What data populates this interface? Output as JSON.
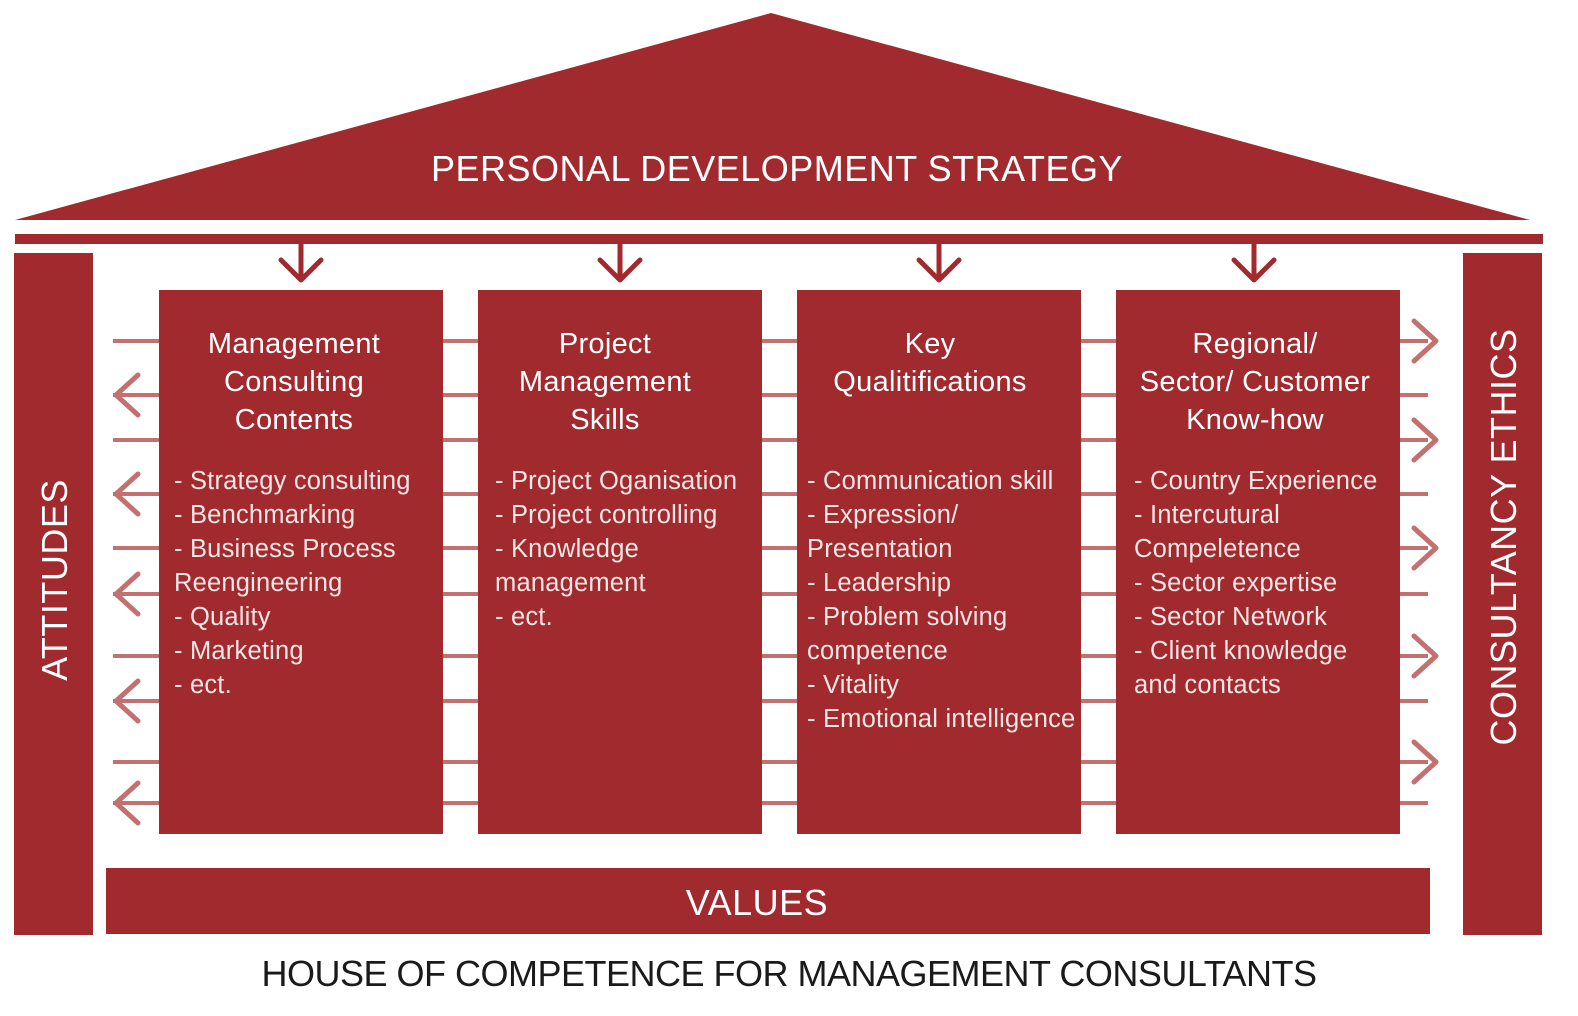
{
  "colors": {
    "primary": "#a02a2d",
    "connector": "#c37070",
    "text_light": "#ffffff",
    "caption": "#1a1a1a"
  },
  "roof": {
    "label": "PERSONAL DEVELOPMENT STRATEGY"
  },
  "side_left": {
    "label": "ATTITUDES"
  },
  "side_right": {
    "label": "CONSULTANCY ETHICS"
  },
  "foundation": {
    "label": "VALUES"
  },
  "caption": "HOUSE OF COMPETENCE FOR MANAGEMENT CONSULTANTS",
  "pillars": [
    {
      "title_lines": [
        "Management",
        "Consulting",
        "Contents"
      ],
      "item_lines": [
        "- Strategy consulting",
        "- Benchmarking",
        "- Business Process",
        "Reengineering",
        "- Quality",
        "- Marketing",
        "- ect."
      ]
    },
    {
      "title_lines": [
        "Project",
        "Management",
        "Skills"
      ],
      "item_lines": [
        "- Project Oganisation",
        "- Project controlling",
        "- Knowledge",
        "management",
        "- ect."
      ]
    },
    {
      "title_lines": [
        "Key",
        "Qualitifications"
      ],
      "item_lines": [
        "- Communication skill",
        "- Expression/",
        "Presentation",
        "- Leadership",
        "- Problem solving",
        "competence",
        "- Vitality",
        "- Emotional intelligence"
      ]
    },
    {
      "title_lines": [
        "Regional/",
        "Sector/ Customer",
        "Know-how"
      ],
      "item_lines": [
        "- Country Experience",
        "- Intercutural",
        "Compeletence",
        "- Sector expertise",
        "- Sector Network",
        "- Client knowledge",
        "and contacts"
      ]
    }
  ]
}
